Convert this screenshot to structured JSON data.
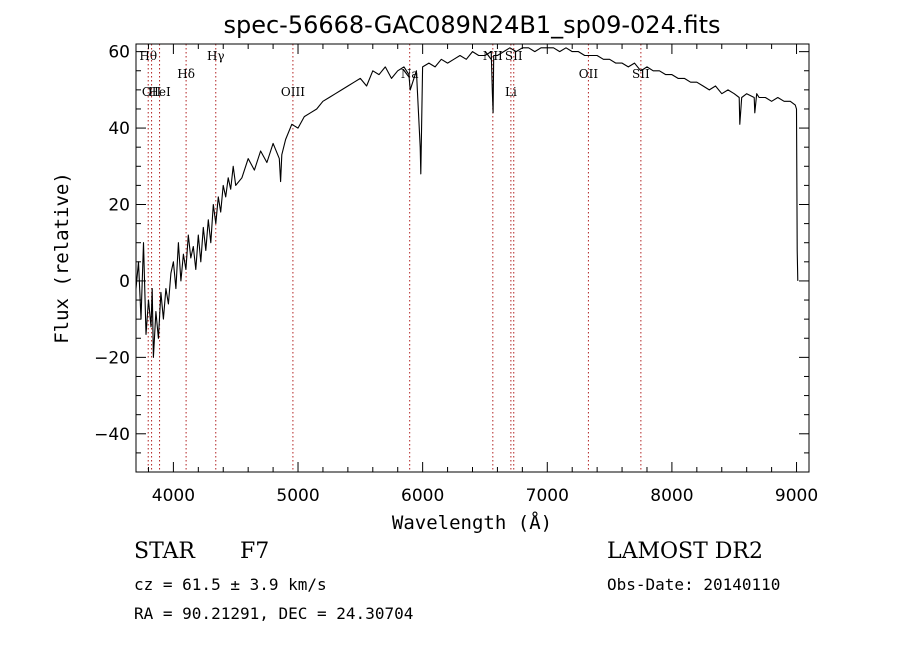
{
  "chart_data": {
    "type": "line",
    "title": "spec-56668-GAC089N24B1_sp09-024.fits",
    "xlabel": "Wavelength (Å)",
    "ylabel": "Flux (relative)",
    "xlim": [
      3700,
      9100
    ],
    "ylim": [
      -50,
      62
    ],
    "x_ticks": [
      4000,
      5000,
      6000,
      7000,
      8000,
      9000
    ],
    "y_ticks": [
      -40,
      -20,
      0,
      20,
      40,
      60
    ],
    "grid": false,
    "line_color": "#000000",
    "marker_color": "#b22222",
    "spectrum": {
      "x": [
        3700,
        3720,
        3740,
        3760,
        3780,
        3800,
        3820,
        3830,
        3840,
        3860,
        3880,
        3900,
        3920,
        3940,
        3960,
        3980,
        4000,
        4020,
        4040,
        4060,
        4080,
        4100,
        4120,
        4140,
        4160,
        4180,
        4200,
        4220,
        4240,
        4260,
        4280,
        4300,
        4320,
        4340,
        4360,
        4380,
        4400,
        4420,
        4440,
        4460,
        4480,
        4500,
        4550,
        4600,
        4650,
        4700,
        4750,
        4800,
        4850,
        4860,
        4870,
        4900,
        4950,
        5000,
        5050,
        5100,
        5150,
        5200,
        5250,
        5300,
        5350,
        5400,
        5450,
        5500,
        5550,
        5600,
        5650,
        5700,
        5750,
        5800,
        5850,
        5890,
        5900,
        5950,
        5980,
        5985,
        6000,
        6050,
        6100,
        6150,
        6200,
        6250,
        6300,
        6350,
        6400,
        6450,
        6500,
        6550,
        6560,
        6565,
        6570,
        6600,
        6650,
        6700,
        6750,
        6800,
        6850,
        6900,
        6950,
        7000,
        7050,
        7100,
        7150,
        7200,
        7250,
        7300,
        7350,
        7400,
        7450,
        7500,
        7550,
        7600,
        7650,
        7700,
        7750,
        7800,
        7850,
        7900,
        7950,
        8000,
        8050,
        8100,
        8150,
        8200,
        8250,
        8300,
        8350,
        8400,
        8450,
        8500,
        8540,
        8545,
        8560,
        8600,
        8660,
        8665,
        8680,
        8700,
        8750,
        8800,
        8850,
        8900,
        8950,
        8990,
        9000,
        9005,
        9010
      ],
      "y": [
        -2,
        5,
        -10,
        10,
        -14,
        -5,
        -12,
        -2,
        -20,
        -8,
        -15,
        -3,
        -10,
        -2,
        -6,
        2,
        5,
        -2,
        10,
        0,
        7,
        3,
        12,
        6,
        9,
        3,
        12,
        5,
        14,
        8,
        16,
        10,
        20,
        15,
        22,
        18,
        25,
        22,
        27,
        24,
        30,
        25,
        27,
        32,
        29,
        34,
        31,
        36,
        32,
        26,
        33,
        37,
        41,
        40,
        43,
        44,
        45,
        47,
        48,
        49,
        50,
        51,
        52,
        53,
        51,
        55,
        54,
        56,
        53,
        55,
        56,
        54,
        50,
        55,
        35,
        28,
        56,
        57,
        56,
        58,
        57,
        58,
        59,
        58,
        60,
        59,
        59,
        60,
        49,
        44,
        59,
        59,
        60,
        61,
        60,
        61,
        61,
        60,
        61,
        61,
        61,
        60,
        61,
        60,
        60,
        59,
        59,
        59,
        58,
        58,
        57,
        57,
        56,
        57,
        55,
        56,
        55,
        55,
        54,
        54,
        53,
        53,
        52,
        52,
        51,
        50,
        51,
        49,
        50,
        49,
        48,
        41,
        48,
        49,
        48,
        44,
        49,
        48,
        48,
        47,
        48,
        47,
        47,
        46,
        45,
        8,
        0
      ],
      "note": "values estimated from the plotted curve"
    },
    "markers": [
      {
        "x": 3798,
        "label": "Hθ",
        "row": 0
      },
      {
        "x": 3825,
        "label": "OII",
        "row": 2
      },
      {
        "x": 3889,
        "label": "HeI",
        "row": 2
      },
      {
        "x": 4102,
        "label": "Hδ",
        "row": 1
      },
      {
        "x": 4340,
        "label": "Hγ",
        "row": 0
      },
      {
        "x": 4959,
        "label": "OIII",
        "row": 2
      },
      {
        "x": 5896,
        "label": "Na",
        "row": 1
      },
      {
        "x": 6563,
        "label": "NII",
        "row": 0
      },
      {
        "x": 6708,
        "label": "Li",
        "row": 2
      },
      {
        "x": 6731,
        "label": "SII",
        "row": 0
      },
      {
        "x": 7330,
        "label": "OII",
        "row": 1
      },
      {
        "x": 7751,
        "label": "SII",
        "row": 1
      }
    ]
  },
  "info": {
    "object_type": "STAR",
    "subclass": "F7",
    "survey": "LAMOST DR2",
    "redshift": "cz =  61.5 ± 3.9 km/s",
    "coordinates": "RA =  90.21291, DEC =  24.30704",
    "obs_date": "Obs-Date: 20140110"
  }
}
